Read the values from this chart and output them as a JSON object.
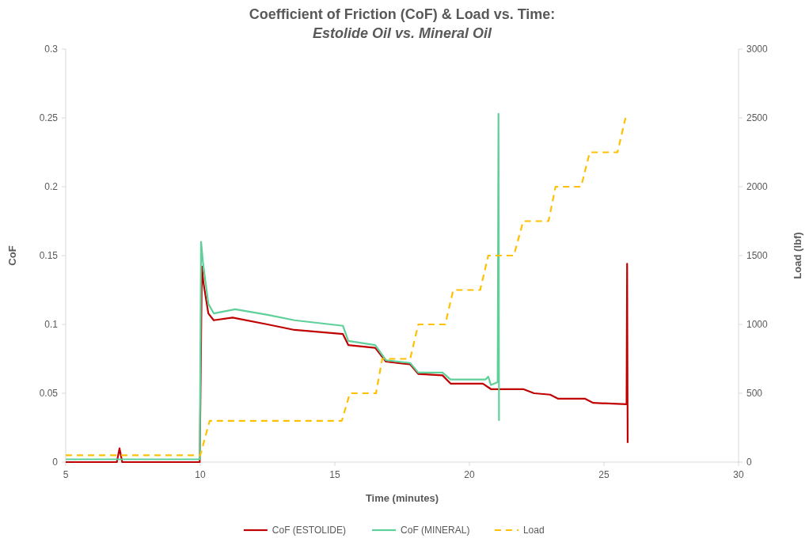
{
  "chart_data": {
    "type": "line",
    "title": "Coefficient of Friction (CoF) & Load vs. Time:",
    "subtitle": "Estolide Oil vs. Mineral Oil",
    "xlabel": "Time (minutes)",
    "ylabel": "CoF",
    "y2label": "Load (lbf)",
    "xlim": [
      5,
      30
    ],
    "xticks": [
      5,
      10,
      15,
      20,
      25,
      30
    ],
    "ylim": [
      0,
      0.3
    ],
    "yticks": [
      0,
      0.05,
      0.1,
      0.15,
      0.2,
      0.25,
      0.3
    ],
    "y2lim": [
      0,
      3000
    ],
    "y2ticks": [
      0,
      500,
      1000,
      1500,
      2000,
      2500,
      3000
    ],
    "legend": "bottom",
    "grid": false,
    "series": [
      {
        "name": "CoF (ESTOLIDE)",
        "color": "#c00000",
        "line_style": "solid",
        "x": [
          5,
          6.9,
          7,
          7.1,
          9.98,
          10.06,
          10.12,
          10.3,
          10.5,
          11.2,
          12.5,
          13.5,
          15.3,
          15.5,
          16.5,
          16.9,
          17.8,
          18.1,
          19,
          19.3,
          20.5,
          20.8,
          22,
          22.4,
          23,
          23.3,
          24.3,
          24.6,
          25.84,
          25.86,
          25.88
        ],
        "values": [
          0,
          0,
          0.01,
          0,
          0,
          0.142,
          0.13,
          0.108,
          0.103,
          0.105,
          0.1,
          0.096,
          0.093,
          0.085,
          0.083,
          0.073,
          0.071,
          0.064,
          0.063,
          0.057,
          0.057,
          0.053,
          0.053,
          0.05,
          0.049,
          0.046,
          0.046,
          0.043,
          0.042,
          0.144,
          0.014
        ]
      },
      {
        "name": "CoF (MINERAL)",
        "color": "#5fd09a",
        "line_style": "solid",
        "x": [
          5,
          9.98,
          10.03,
          10.1,
          10.3,
          10.5,
          11.3,
          12.5,
          13.5,
          15.3,
          15.5,
          16.5,
          16.9,
          17.8,
          18.1,
          19,
          19.3,
          20.6,
          20.7,
          20.8,
          21.05,
          21.08,
          21.1
        ],
        "values": [
          0.002,
          0.002,
          0.16,
          0.145,
          0.115,
          0.108,
          0.111,
          0.107,
          0.103,
          0.099,
          0.088,
          0.085,
          0.074,
          0.072,
          0.065,
          0.065,
          0.06,
          0.06,
          0.062,
          0.056,
          0.058,
          0.253,
          0.03
        ]
      },
      {
        "name": "Load",
        "color": "#ffc000",
        "axis": "y2",
        "line_style": "dashed",
        "x": [
          5,
          10,
          10.35,
          15.26,
          15.56,
          16.53,
          16.76,
          17.8,
          18.1,
          19.1,
          19.4,
          20.4,
          20.7,
          21.65,
          22,
          22.94,
          23.2,
          24.15,
          24.47,
          25.5,
          25.8
        ],
        "values": [
          50,
          50,
          300,
          300,
          500,
          500,
          750,
          750,
          1000,
          1000,
          1250,
          1250,
          1500,
          1500,
          1750,
          1750,
          2000,
          2000,
          2250,
          2250,
          2500
        ]
      }
    ]
  }
}
